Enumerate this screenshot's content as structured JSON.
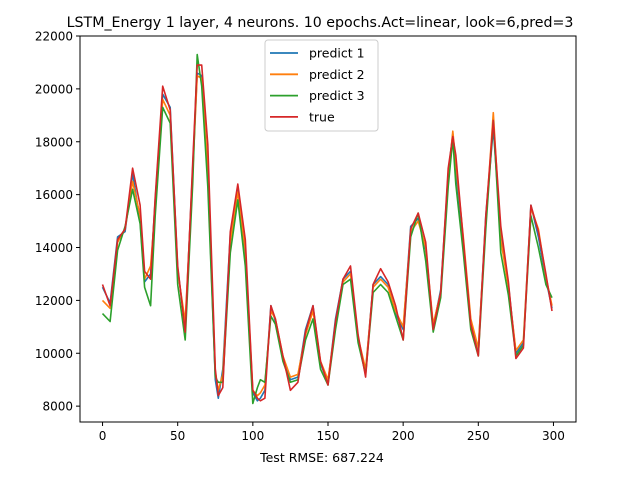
{
  "chart_data": {
    "type": "line",
    "title": "LSTM_Energy 1 layer, 4 neurons. 10 epochs.Act=linear, look=6,pred=3",
    "xlabel": "Test RMSE: 687.224",
    "ylabel": "",
    "xlim": [
      -15,
      315
    ],
    "ylim": [
      7400,
      22000
    ],
    "x_ticks": [
      0,
      50,
      100,
      150,
      200,
      250,
      300
    ],
    "y_ticks": [
      8000,
      10000,
      12000,
      14000,
      16000,
      18000,
      20000,
      22000
    ],
    "x_tick_labels": [
      "0",
      "50",
      "100",
      "150",
      "200",
      "250",
      "300"
    ],
    "y_tick_labels": [
      "8000",
      "10000",
      "12000",
      "14000",
      "16000",
      "18000",
      "20000",
      "22000"
    ],
    "grid": false,
    "legend_position": "upper center",
    "x": [
      0,
      5,
      10,
      15,
      20,
      25,
      28,
      32,
      35,
      40,
      45,
      50,
      55,
      60,
      63,
      66,
      70,
      75,
      77,
      80,
      85,
      90,
      95,
      100,
      103,
      105,
      108,
      112,
      115,
      120,
      125,
      130,
      135,
      140,
      145,
      150,
      155,
      160,
      165,
      170,
      175,
      180,
      185,
      190,
      195,
      200,
      205,
      210,
      215,
      220,
      225,
      230,
      233,
      235,
      240,
      245,
      250,
      255,
      260,
      265,
      270,
      275,
      280,
      285,
      290,
      295,
      299
    ],
    "series": [
      {
        "name": "predict 1",
        "color": "#1f77b4",
        "values": [
          12500,
          11900,
          14400,
          14600,
          16800,
          15000,
          12700,
          13000,
          15800,
          19800,
          19300,
          13200,
          11000,
          17000,
          20600,
          20500,
          16800,
          9000,
          8300,
          9400,
          14500,
          16300,
          13700,
          8500,
          8200,
          8300,
          8600,
          11800,
          11200,
          9800,
          9000,
          9100,
          10900,
          11800,
          9600,
          8900,
          11300,
          12800,
          13100,
          10500,
          9300,
          12600,
          12900,
          12600,
          11500,
          10900,
          14800,
          15100,
          13900,
          11000,
          12400,
          16800,
          18300,
          16900,
          14200,
          11200,
          10100,
          15200,
          18500,
          14500,
          12600,
          10000,
          10400,
          15600,
          14400,
          12800,
          11700
        ]
      },
      {
        "name": "predict 2",
        "color": "#ff7f0e",
        "values": [
          12000,
          11700,
          14200,
          14700,
          16500,
          15200,
          12800,
          13300,
          15500,
          19600,
          19000,
          13100,
          11200,
          16800,
          20500,
          20400,
          17000,
          9300,
          8600,
          9200,
          14200,
          16100,
          13900,
          8600,
          8400,
          8500,
          8800,
          11600,
          11300,
          9900,
          9100,
          9200,
          10700,
          11600,
          9700,
          9000,
          11100,
          12700,
          13000,
          10600,
          9400,
          12500,
          12800,
          12500,
          11600,
          11000,
          14600,
          15000,
          14000,
          11100,
          12300,
          16600,
          18400,
          17200,
          14400,
          11300,
          10200,
          15000,
          19100,
          14300,
          12500,
          10100,
          10500,
          15500,
          14700,
          12900,
          11800
        ]
      },
      {
        "name": "predict 3",
        "color": "#2ca02c",
        "values": [
          11500,
          11200,
          13900,
          14800,
          16200,
          14900,
          12500,
          11800,
          15200,
          19300,
          18700,
          12600,
          10500,
          16400,
          21300,
          20100,
          16300,
          9100,
          8900,
          8900,
          13800,
          15800,
          13300,
          8100,
          8700,
          9000,
          8900,
          11400,
          11100,
          9700,
          8900,
          9000,
          10500,
          11300,
          9400,
          8800,
          10900,
          12600,
          12800,
          10400,
          9200,
          12300,
          12600,
          12300,
          11400,
          10500,
          14400,
          15300,
          13500,
          10800,
          12100,
          16300,
          18100,
          16400,
          13800,
          10900,
          9900,
          14700,
          18800,
          13800,
          12200,
          9900,
          10300,
          15200,
          14000,
          12600,
          12100
        ]
      },
      {
        "name": "true",
        "color": "#d62728",
        "values": [
          12600,
          11800,
          14300,
          14700,
          17000,
          15600,
          13100,
          12800,
          15900,
          20100,
          19200,
          13300,
          10800,
          17200,
          20900,
          20900,
          17900,
          9400,
          8400,
          8700,
          14600,
          16400,
          14300,
          8600,
          8300,
          8200,
          8300,
          11800,
          11300,
          9900,
          8600,
          8900,
          10800,
          11800,
          9700,
          8800,
          11200,
          12800,
          13300,
          10700,
          9100,
          12600,
          13200,
          12700,
          11800,
          10500,
          14700,
          15300,
          14200,
          10900,
          12300,
          17000,
          18200,
          17500,
          14300,
          11100,
          9900,
          15200,
          18800,
          14800,
          12700,
          9800,
          10200,
          15600,
          14600,
          13000,
          11600
        ]
      }
    ]
  }
}
